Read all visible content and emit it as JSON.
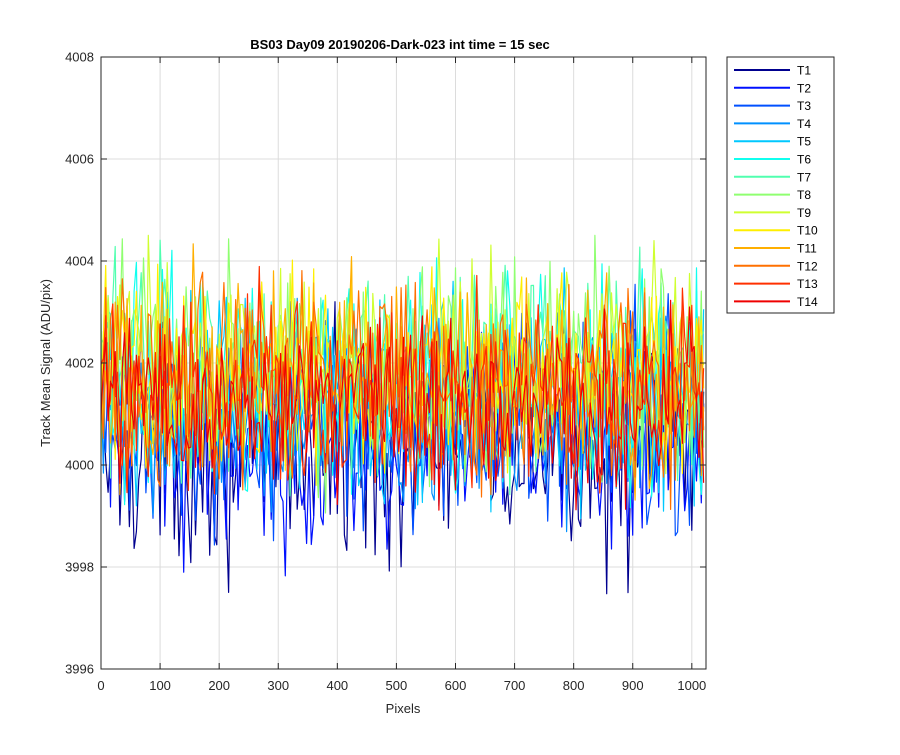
{
  "chart_data": {
    "type": "line",
    "title": "BS03 Day09 20190206-Dark-023 int time = 15 sec",
    "xlabel": "Pixels",
    "ylabel": "Track Mean Signal (ADU/pix)",
    "xlim": [
      0,
      1024
    ],
    "ylim": [
      3996,
      4008
    ],
    "x_ticks": [
      0,
      100,
      200,
      300,
      400,
      500,
      600,
      700,
      800,
      900,
      1000
    ],
    "y_ticks": [
      3996,
      3998,
      4000,
      4002,
      4004,
      4006,
      4008
    ],
    "grid": true,
    "legend_position": "outside-top-right",
    "x_sampling": {
      "start": 0,
      "end": 1023,
      "step": 4
    },
    "series": [
      {
        "name": "T1",
        "color": "#00008f",
        "mean": 4000.3,
        "spread": 1.05
      },
      {
        "name": "T2",
        "color": "#0010ff",
        "mean": 4000.5,
        "spread": 1.0
      },
      {
        "name": "T3",
        "color": "#0050ff",
        "mean": 4000.8,
        "spread": 1.0
      },
      {
        "name": "T4",
        "color": "#0090ff",
        "mean": 4001.1,
        "spread": 1.0
      },
      {
        "name": "T5",
        "color": "#00c8ff",
        "mean": 4001.4,
        "spread": 1.05
      },
      {
        "name": "T6",
        "color": "#10ffef",
        "mean": 4001.6,
        "spread": 1.05
      },
      {
        "name": "T7",
        "color": "#50ffaf",
        "mean": 4001.8,
        "spread": 1.0
      },
      {
        "name": "T8",
        "color": "#8fff70",
        "mean": 4001.9,
        "spread": 1.0
      },
      {
        "name": "T9",
        "color": "#cfff30",
        "mean": 4001.9,
        "spread": 0.95
      },
      {
        "name": "T10",
        "color": "#ffef00",
        "mean": 4001.8,
        "spread": 0.95
      },
      {
        "name": "T11",
        "color": "#ffaf00",
        "mean": 4001.8,
        "spread": 0.95
      },
      {
        "name": "T12",
        "color": "#ff7000",
        "mean": 4001.7,
        "spread": 0.95
      },
      {
        "name": "T13",
        "color": "#ff3000",
        "mean": 4001.4,
        "spread": 0.9
      },
      {
        "name": "T14",
        "color": "#ef0000",
        "mean": 4001.2,
        "spread": 0.85
      }
    ]
  }
}
